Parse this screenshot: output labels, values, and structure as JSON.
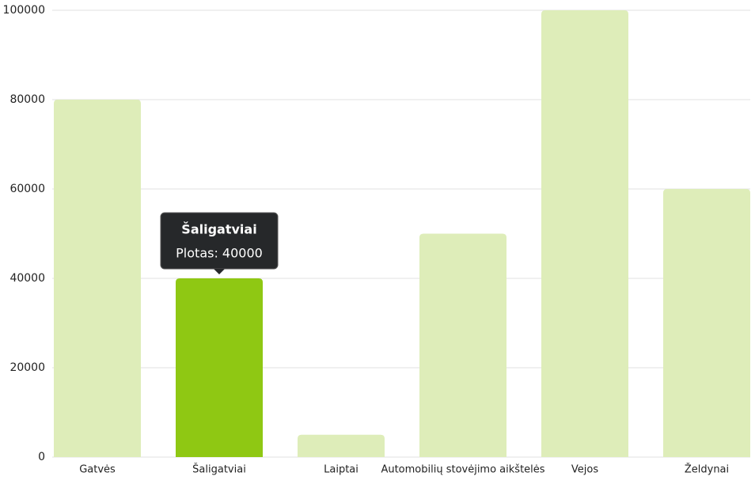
{
  "chart_data": {
    "type": "bar",
    "categories": [
      "Gatvės",
      "Šaligatviai",
      "Laiptai",
      "Automobilių stovėjimo aikštelės",
      "Vejos",
      "Želdynai"
    ],
    "series": [
      {
        "name": "Plotas",
        "values": [
          80000,
          40000,
          5000,
          50000,
          100000,
          60000
        ],
        "colors": [
          "#deedb9",
          "#8fc813",
          "#deedb9",
          "#deedb9",
          "#deedb9",
          "#deedb9"
        ]
      }
    ],
    "ylim": [
      0,
      100000
    ],
    "yticks": [
      0,
      20000,
      40000,
      60000,
      80000,
      100000
    ],
    "grid": true,
    "tooltip": {
      "title": "Šaligatviai",
      "text": "Plotas: 40000"
    }
  }
}
